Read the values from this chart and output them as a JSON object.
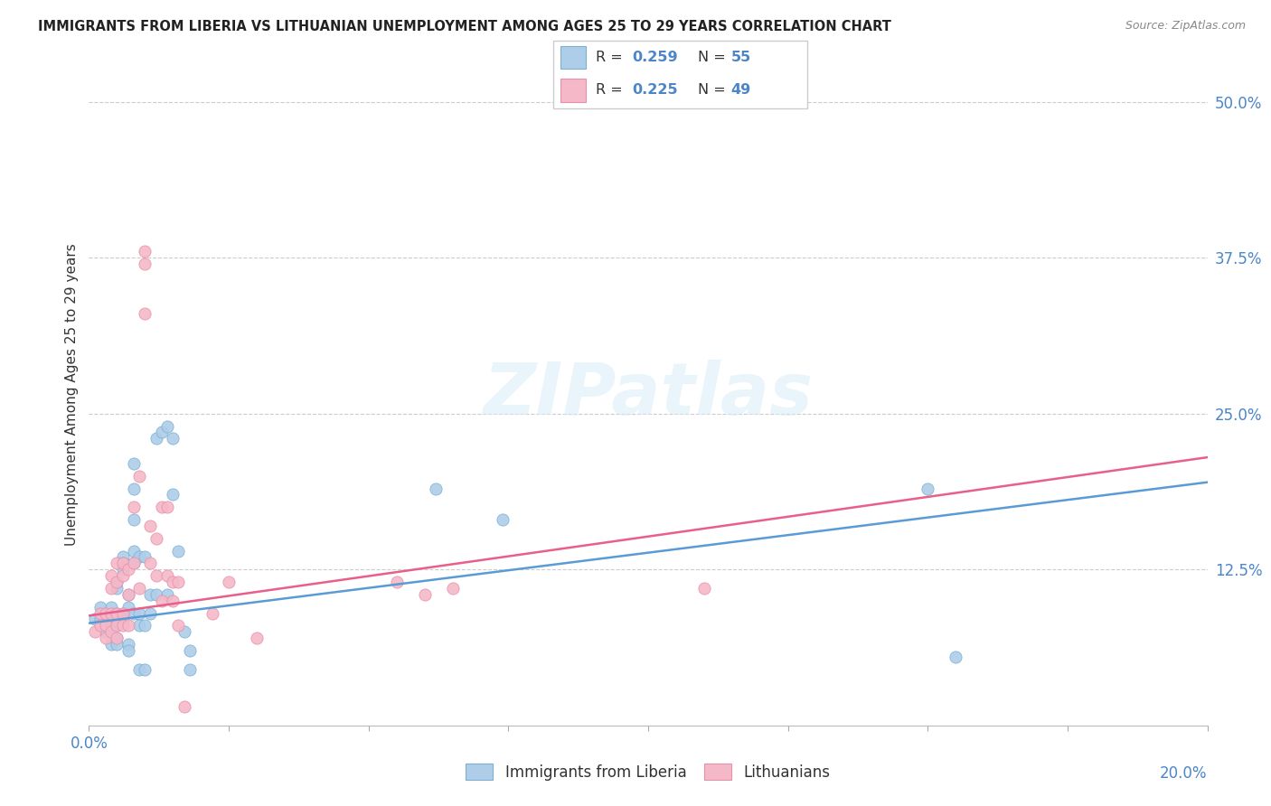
{
  "title": "IMMIGRANTS FROM LIBERIA VS LITHUANIAN UNEMPLOYMENT AMONG AGES 25 TO 29 YEARS CORRELATION CHART",
  "source": "Source: ZipAtlas.com",
  "ylabel": "Unemployment Among Ages 25 to 29 years",
  "right_yticks": [
    "50.0%",
    "37.5%",
    "25.0%",
    "12.5%"
  ],
  "right_ytick_vals": [
    0.5,
    0.375,
    0.25,
    0.125
  ],
  "legend1_r": "0.259",
  "legend1_n": "55",
  "legend2_r": "0.225",
  "legend2_n": "49",
  "legend1_fill": "#aecde8",
  "legend2_fill": "#f5b8c8",
  "legend1_edge": "#7ab0d4",
  "legend2_edge": "#e890a8",
  "blue_color": "#5b9bd5",
  "pink_color": "#e8608a",
  "text_color": "#4a86c8",
  "label_color": "#333333",
  "watermark": "ZIPatlas",
  "blue_dots": [
    [
      0.001,
      0.085
    ],
    [
      0.002,
      0.085
    ],
    [
      0.002,
      0.095
    ],
    [
      0.003,
      0.075
    ],
    [
      0.003,
      0.09
    ],
    [
      0.003,
      0.08
    ],
    [
      0.004,
      0.095
    ],
    [
      0.004,
      0.08
    ],
    [
      0.004,
      0.075
    ],
    [
      0.004,
      0.065
    ],
    [
      0.005,
      0.11
    ],
    [
      0.005,
      0.115
    ],
    [
      0.005,
      0.09
    ],
    [
      0.005,
      0.08
    ],
    [
      0.005,
      0.07
    ],
    [
      0.005,
      0.065
    ],
    [
      0.006,
      0.135
    ],
    [
      0.006,
      0.13
    ],
    [
      0.006,
      0.125
    ],
    [
      0.006,
      0.09
    ],
    [
      0.006,
      0.085
    ],
    [
      0.007,
      0.105
    ],
    [
      0.007,
      0.095
    ],
    [
      0.007,
      0.065
    ],
    [
      0.007,
      0.06
    ],
    [
      0.008,
      0.21
    ],
    [
      0.008,
      0.19
    ],
    [
      0.008,
      0.165
    ],
    [
      0.008,
      0.14
    ],
    [
      0.008,
      0.13
    ],
    [
      0.008,
      0.09
    ],
    [
      0.009,
      0.135
    ],
    [
      0.009,
      0.09
    ],
    [
      0.009,
      0.08
    ],
    [
      0.009,
      0.045
    ],
    [
      0.01,
      0.135
    ],
    [
      0.01,
      0.08
    ],
    [
      0.01,
      0.045
    ],
    [
      0.011,
      0.105
    ],
    [
      0.011,
      0.09
    ],
    [
      0.012,
      0.23
    ],
    [
      0.012,
      0.105
    ],
    [
      0.013,
      0.235
    ],
    [
      0.014,
      0.24
    ],
    [
      0.014,
      0.105
    ],
    [
      0.015,
      0.23
    ],
    [
      0.015,
      0.185
    ],
    [
      0.016,
      0.14
    ],
    [
      0.017,
      0.075
    ],
    [
      0.018,
      0.06
    ],
    [
      0.018,
      0.045
    ],
    [
      0.062,
      0.19
    ],
    [
      0.074,
      0.165
    ],
    [
      0.15,
      0.19
    ],
    [
      0.155,
      0.055
    ]
  ],
  "pink_dots": [
    [
      0.001,
      0.075
    ],
    [
      0.002,
      0.09
    ],
    [
      0.002,
      0.08
    ],
    [
      0.003,
      0.09
    ],
    [
      0.003,
      0.08
    ],
    [
      0.003,
      0.07
    ],
    [
      0.004,
      0.12
    ],
    [
      0.004,
      0.11
    ],
    [
      0.004,
      0.09
    ],
    [
      0.004,
      0.075
    ],
    [
      0.005,
      0.13
    ],
    [
      0.005,
      0.115
    ],
    [
      0.005,
      0.09
    ],
    [
      0.005,
      0.08
    ],
    [
      0.005,
      0.07
    ],
    [
      0.006,
      0.13
    ],
    [
      0.006,
      0.12
    ],
    [
      0.006,
      0.09
    ],
    [
      0.006,
      0.08
    ],
    [
      0.007,
      0.125
    ],
    [
      0.007,
      0.105
    ],
    [
      0.007,
      0.08
    ],
    [
      0.008,
      0.175
    ],
    [
      0.008,
      0.13
    ],
    [
      0.009,
      0.2
    ],
    [
      0.009,
      0.11
    ],
    [
      0.01,
      0.38
    ],
    [
      0.01,
      0.37
    ],
    [
      0.01,
      0.33
    ],
    [
      0.011,
      0.16
    ],
    [
      0.011,
      0.13
    ],
    [
      0.012,
      0.15
    ],
    [
      0.012,
      0.12
    ],
    [
      0.013,
      0.175
    ],
    [
      0.013,
      0.1
    ],
    [
      0.014,
      0.175
    ],
    [
      0.014,
      0.12
    ],
    [
      0.015,
      0.115
    ],
    [
      0.015,
      0.1
    ],
    [
      0.016,
      0.115
    ],
    [
      0.016,
      0.08
    ],
    [
      0.017,
      0.015
    ],
    [
      0.022,
      0.09
    ],
    [
      0.025,
      0.115
    ],
    [
      0.03,
      0.07
    ],
    [
      0.055,
      0.115
    ],
    [
      0.06,
      0.105
    ],
    [
      0.065,
      0.11
    ],
    [
      0.11,
      0.11
    ]
  ],
  "xlim": [
    0.0,
    0.2
  ],
  "ylim": [
    0.0,
    0.53
  ],
  "trend1_y0": 0.082,
  "trend1_y1": 0.195,
  "trend2_y0": 0.088,
  "trend2_y1": 0.215
}
